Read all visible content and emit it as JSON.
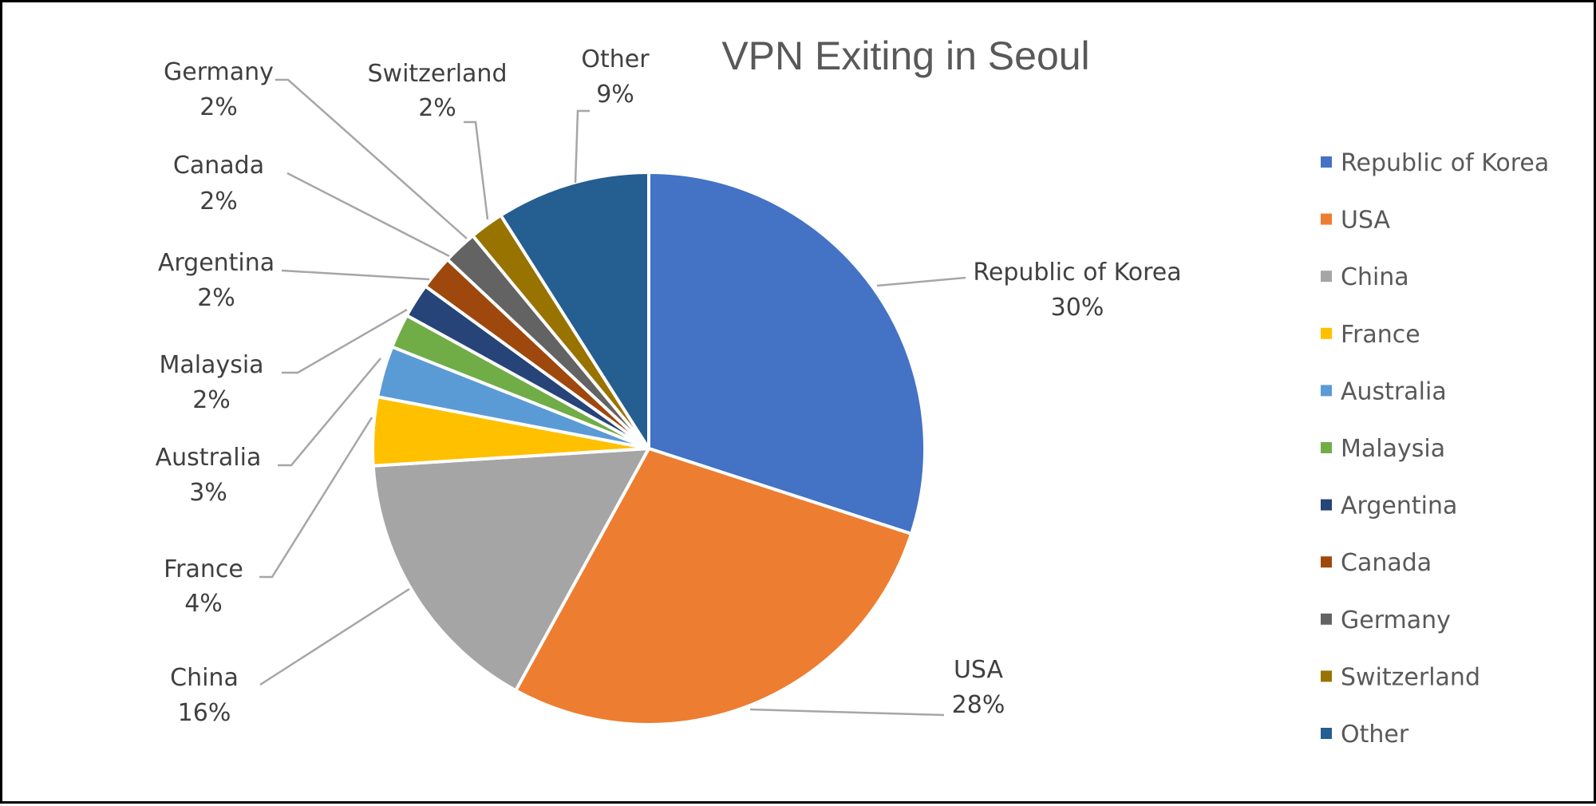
{
  "chart_data": {
    "type": "pie",
    "title": "VPN Exiting in Seoul",
    "slices": [
      {
        "name": "Republic of  Korea",
        "value": 30,
        "percent_label": "30%",
        "color": "#4472C4"
      },
      {
        "name": "USA",
        "value": 28,
        "percent_label": "28%",
        "color": "#ED7D31"
      },
      {
        "name": "China",
        "value": 16,
        "percent_label": "16%",
        "color": "#A5A5A5"
      },
      {
        "name": "France",
        "value": 4,
        "percent_label": "4%",
        "color": "#FFC000"
      },
      {
        "name": "Australia",
        "value": 3,
        "percent_label": "3%",
        "color": "#5B9BD5"
      },
      {
        "name": "Malaysia",
        "value": 2,
        "percent_label": "2%",
        "color": "#70AD47"
      },
      {
        "name": "Argentina",
        "value": 2,
        "percent_label": "2%",
        "color": "#264478"
      },
      {
        "name": "Canada",
        "value": 2,
        "percent_label": "2%",
        "color": "#9E480E"
      },
      {
        "name": "Germany",
        "value": 2,
        "percent_label": "2%",
        "color": "#636363"
      },
      {
        "name": "Switzerland",
        "value": 2,
        "percent_label": "2%",
        "color": "#997300"
      },
      {
        "name": "Other",
        "value": 9,
        "percent_label": "9%",
        "color": "#255E91"
      }
    ],
    "legend": {
      "position": "right"
    }
  }
}
